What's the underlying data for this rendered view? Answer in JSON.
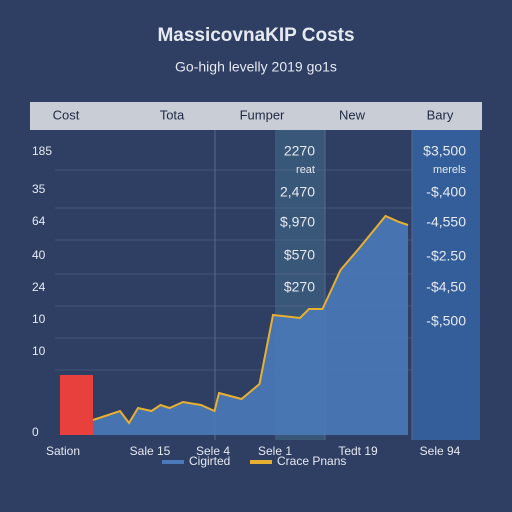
{
  "chart_data": {
    "type": "area",
    "title": "MassicovnaKIP Costs",
    "subtitle": "Go-high levelly 2019 go1s",
    "header": [
      "Cost",
      "Tota",
      "Fumper",
      "New",
      "Bary"
    ],
    "row_labels": [
      "185",
      "35",
      "64",
      "40",
      "24",
      "10",
      "10",
      "0"
    ],
    "middle_notes": [
      "2270",
      "reat",
      "2,470",
      "$,970",
      "$570",
      "$270"
    ],
    "right_notes": [
      "$3,500",
      "merels",
      "-$,400",
      "-4,550",
      "-$2.50",
      "-$4,50",
      "-$,500"
    ],
    "categories": [
      "Sation",
      "Sale 15",
      "Sele 4",
      "Sele 1",
      "Tedt 19",
      "Sele 94"
    ],
    "xlim": [
      0,
      100
    ],
    "ylim": [
      0,
      100
    ],
    "highlight": {
      "color": "#e8403c",
      "value": 20
    },
    "series": [
      {
        "name": "Cigirted",
        "color": "#4a7ab8",
        "x": [
          14,
          20,
          22,
          24,
          27,
          29,
          31,
          34,
          38,
          41,
          42,
          47,
          51,
          54,
          60,
          62,
          65,
          69,
          73,
          79,
          82,
          84
        ],
        "values": [
          5,
          8,
          4,
          9,
          8,
          10,
          9,
          11,
          10,
          8,
          14,
          12,
          17,
          40,
          39,
          42,
          42,
          55,
          62,
          73,
          71,
          70
        ]
      },
      {
        "name": "Crace Pnans",
        "color": "#e8b030",
        "x": [
          14,
          20,
          22,
          24,
          27,
          29,
          31,
          34,
          38,
          41,
          42,
          47,
          51,
          54,
          60,
          62,
          65,
          69,
          73,
          79,
          82,
          84
        ],
        "values": [
          5,
          8,
          4,
          9,
          8,
          10,
          9,
          11,
          10,
          8,
          14,
          12,
          17,
          40,
          39,
          42,
          42,
          55,
          62,
          73,
          71,
          70
        ]
      }
    ]
  }
}
